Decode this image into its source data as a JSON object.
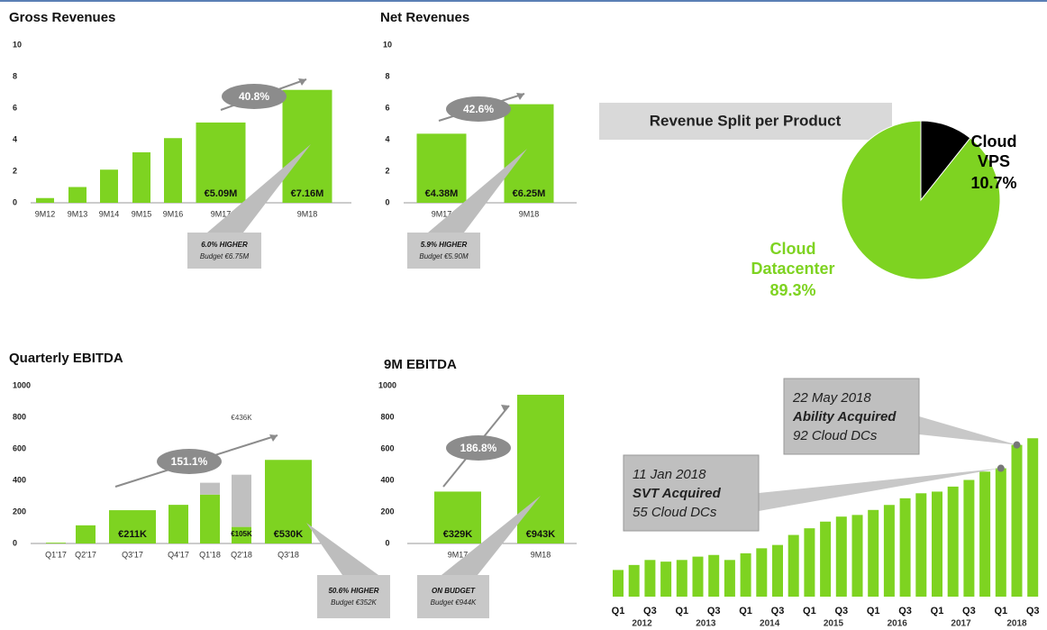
{
  "chart_data": [
    {
      "type": "bar",
      "title": "Gross Revenues",
      "categories": [
        "9M12",
        "9M13",
        "9M14",
        "9M15",
        "9M16",
        "9M17",
        "9M18"
      ],
      "values": [
        0.3,
        1.0,
        2.1,
        3.2,
        4.1,
        5.09,
        7.16
      ],
      "value_labels": [
        null,
        null,
        null,
        null,
        null,
        "€5.09M",
        "€7.16M"
      ],
      "color": "#7ed321",
      "ylim": [
        0,
        10
      ],
      "yticks": [
        0,
        2,
        4,
        6,
        8,
        10
      ],
      "annotations": [
        "40.8%",
        "6.0% HIGHER",
        "Budget €6.75M"
      ]
    },
    {
      "type": "bar",
      "title": "Net Revenues",
      "categories": [
        "9M17",
        "9M18"
      ],
      "values": [
        4.38,
        6.25
      ],
      "value_labels": [
        "€4.38M",
        "€6.25M"
      ],
      "color": "#7ed321",
      "ylim": [
        0,
        10
      ],
      "yticks": [
        0,
        2,
        4,
        6,
        8,
        10
      ],
      "annotations": [
        "42.6%",
        "5.9% HIGHER",
        "Budget €5.90M"
      ]
    },
    {
      "type": "pie",
      "title": "Revenue Split per Product",
      "categories": [
        "Cloud VPS",
        "Cloud Datacenter"
      ],
      "values": [
        10.7,
        89.3
      ],
      "value_labels": [
        "10.7%",
        "89.3%"
      ],
      "colors": [
        "#000000",
        "#7ed321"
      ]
    },
    {
      "type": "stacked_bar",
      "title": "Quarterly EBITDA",
      "categories": [
        "Q1'17",
        "Q2'17",
        "Q3'17",
        "Q4'17",
        "Q1'18",
        "Q2'18",
        "Q3'18"
      ],
      "series": [
        {
          "color": "#7ed321",
          "values": [
            5,
            115,
            211,
            245,
            310,
            105,
            530
          ],
          "value_labels": [
            null,
            null,
            "€211K",
            null,
            null,
            "€105K",
            "€530K"
          ]
        },
        {
          "color": "#c0c0c0",
          "values": [
            null,
            null,
            null,
            null,
            75,
            331,
            null
          ]
        }
      ],
      "ylim": [
        0,
        1000
      ],
      "yticks": [
        0,
        200,
        400,
        600,
        800,
        1000
      ],
      "annotations": [
        "€436K",
        "151.1%",
        "50.6% HIGHER",
        "Budget €352K"
      ]
    },
    {
      "type": "bar",
      "title": "9M EBITDA",
      "categories": [
        "9M17",
        "9M18"
      ],
      "values": [
        329,
        943
      ],
      "value_labels": [
        "€329K",
        "€943K"
      ],
      "color": "#7ed321",
      "ylim": [
        0,
        1000
      ],
      "yticks": [
        0,
        200,
        400,
        600,
        800,
        1000
      ],
      "annotations": [
        "186.8%",
        "ON BUDGET",
        "Budget €944K"
      ]
    },
    {
      "type": "bar",
      "categories": [
        "Q1",
        null,
        "Q3",
        null,
        "Q1",
        null,
        "Q3",
        null,
        "Q1",
        null,
        "Q3",
        null,
        "Q1",
        null,
        "Q3",
        null,
        "Q1",
        null,
        "Q3",
        null,
        "Q1",
        null,
        "Q3",
        null,
        "Q1",
        null,
        "Q3"
      ],
      "years": [
        "2012",
        "2013",
        "2014",
        "2015",
        "2016",
        "2017",
        "2018"
      ],
      "values": [
        16,
        19,
        22,
        21,
        22,
        24,
        25,
        22,
        26,
        29,
        31,
        37,
        41,
        45,
        48,
        49,
        52,
        55,
        59,
        62,
        63,
        66,
        70,
        75,
        77,
        91,
        95
      ],
      "color": "#7ed321",
      "annotations": [
        "22 May 2018",
        "Ability Acquired",
        "92 Cloud DCs",
        "11 Jan 2018",
        "SVT Acquired",
        "55 Cloud DCs"
      ]
    }
  ]
}
